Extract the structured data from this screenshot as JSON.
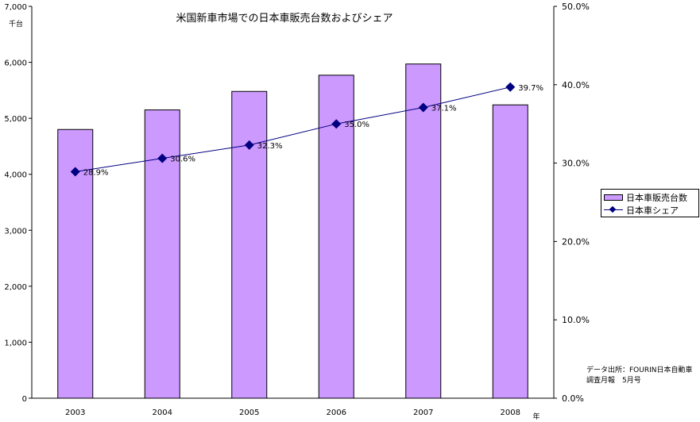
{
  "chart_data": {
    "type": "bar",
    "title": "米国新車市場での日本車販売台数およびシェア",
    "categories": [
      "2003",
      "2004",
      "2005",
      "2006",
      "2007",
      "2008"
    ],
    "xlabel": "年",
    "left_unit": "千台",
    "ylim": [
      0,
      7000
    ],
    "y_ticks": [
      "0",
      "1,000",
      "2,000",
      "3,000",
      "4,000",
      "5,000",
      "6,000",
      "7,000"
    ],
    "y2lim": [
      0,
      50
    ],
    "y2_ticks": [
      "0.0%",
      "10.0%",
      "20.0%",
      "30.0%",
      "40.0%",
      "50.0%"
    ],
    "series": [
      {
        "name": "日本車販売台数",
        "type": "bar",
        "axis": "left",
        "values": [
          4800,
          5150,
          5480,
          5770,
          5970,
          5240
        ],
        "color": "#cc99ff"
      },
      {
        "name": "日本車シェア",
        "type": "line",
        "axis": "right",
        "values": [
          28.9,
          30.6,
          32.3,
          35.0,
          37.1,
          39.7
        ],
        "labels": [
          "28.9%",
          "30.6%",
          "32.3%",
          "35.0%",
          "37.1%",
          "39.7%"
        ],
        "color": "#000080",
        "marker": "diamond"
      }
    ],
    "legend_position": "right",
    "grid": false
  },
  "source_note": {
    "line1": "データ出所：FOURIN日本自動車",
    "line2": "調査月報　5月号"
  }
}
